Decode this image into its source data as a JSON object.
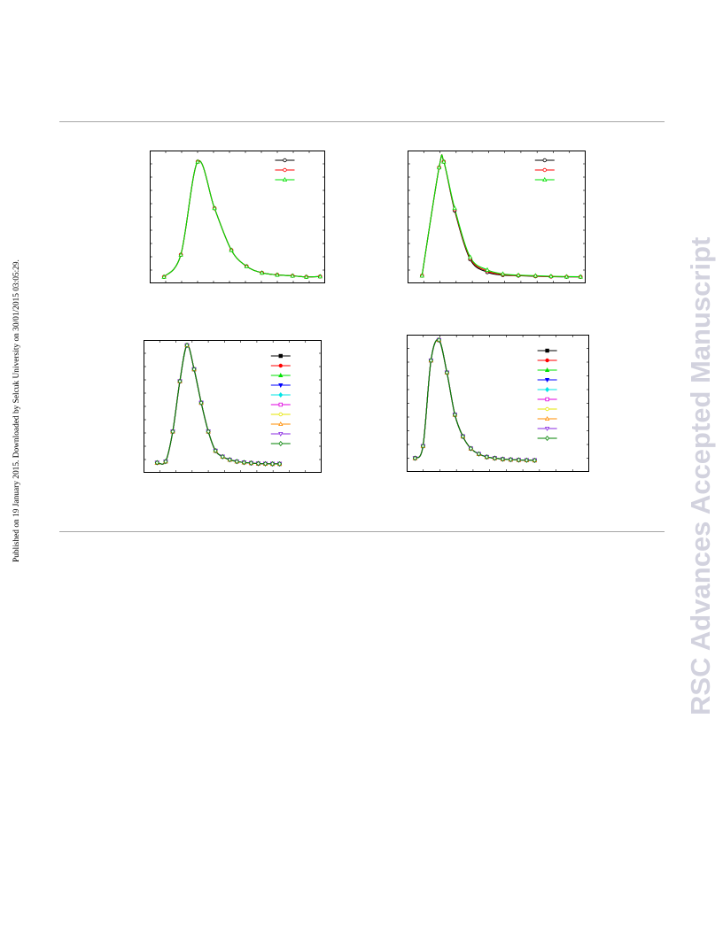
{
  "side_note": "Published on 19 January 2015. Downloaded by Selcuk University on 30/01/2015 03:05:29.",
  "watermark": "RSC Advances Accepted Manuscript",
  "chart_data": [
    {
      "type": "line",
      "title": "",
      "xlabel": "",
      "ylabel": "",
      "xlim": [
        0,
        11
      ],
      "ylim": [
        0,
        1.05
      ],
      "x": [
        0.7,
        1.8,
        2.9,
        4.0,
        5.1,
        6.1,
        7.1,
        8.1,
        9.1,
        10.0,
        10.9
      ],
      "series": [
        {
          "color": "#000000",
          "marker": "circle-open",
          "values": [
            0.01,
            0.2,
            1.0,
            0.6,
            0.24,
            0.1,
            0.045,
            0.027,
            0.019,
            0.01,
            0.013
          ]
        },
        {
          "color": "#ff0000",
          "marker": "circle-open",
          "values": [
            0.01,
            0.2,
            1.0,
            0.6,
            0.24,
            0.1,
            0.045,
            0.027,
            0.019,
            0.01,
            0.013
          ]
        },
        {
          "color": "#00e000",
          "marker": "triangle-up-open",
          "values": [
            0.01,
            0.2,
            1.0,
            0.6,
            0.24,
            0.1,
            0.045,
            0.027,
            0.019,
            0.01,
            0.013
          ]
        }
      ],
      "grid": false,
      "legend": "top-right"
    },
    {
      "type": "line",
      "title": "",
      "xlabel": "",
      "ylabel": "",
      "xlim": [
        0,
        11
      ],
      "ylim": [
        0,
        1.05
      ],
      "x": [
        0.7,
        1.8,
        2.1,
        2.8,
        3.8,
        4.9,
        5.9,
        6.9,
        8.0,
        9.0,
        10.0,
        10.9
      ],
      "series": [
        {
          "color": "#000000",
          "marker": "circle-open",
          "values": [
            0.02,
            0.95,
            1.0,
            0.58,
            0.16,
            0.05,
            0.025,
            0.02,
            0.015,
            0.012,
            0.01,
            0.01
          ]
        },
        {
          "color": "#ff0000",
          "marker": "circle-open",
          "values": [
            0.02,
            0.95,
            1.0,
            0.59,
            0.17,
            0.06,
            0.03,
            0.022,
            0.017,
            0.013,
            0.011,
            0.01
          ]
        },
        {
          "color": "#00e000",
          "marker": "triangle-up-open",
          "values": [
            0.02,
            0.95,
            1.0,
            0.6,
            0.18,
            0.07,
            0.035,
            0.025,
            0.02,
            0.015,
            0.012,
            0.011
          ]
        }
      ],
      "grid": false,
      "legend": "top-right"
    },
    {
      "type": "line",
      "title": "",
      "xlabel": "",
      "ylabel": "",
      "xlim": [
        0,
        12
      ],
      "ylim": [
        -0.02,
        1.0
      ],
      "x": [
        0.7,
        1.3,
        1.8,
        2.3,
        2.8,
        3.3,
        3.8,
        4.3,
        4.8,
        5.3,
        5.8,
        6.3,
        6.8,
        7.3,
        7.8,
        8.3,
        8.8,
        9.3
      ],
      "series": [
        {
          "name": "",
          "color": "#000000",
          "marker": "square-filled",
          "values": [
            0.02,
            0.03,
            0.28,
            0.7,
            1.0,
            0.8,
            0.52,
            0.28,
            0.12,
            0.07,
            0.045,
            0.03,
            0.022,
            0.017,
            0.013,
            0.011,
            0.01,
            0.01
          ]
        },
        {
          "name": "",
          "color": "#ff0000",
          "marker": "circle-filled",
          "values": [
            0.02,
            0.03,
            0.28,
            0.7,
            1.0,
            0.8,
            0.52,
            0.28,
            0.12,
            0.07,
            0.045,
            0.03,
            0.022,
            0.017,
            0.013,
            0.011,
            0.01,
            0.01
          ]
        },
        {
          "name": "",
          "color": "#00e000",
          "marker": "triangle-up-filled",
          "values": [
            0.02,
            0.03,
            0.28,
            0.7,
            1.0,
            0.8,
            0.52,
            0.28,
            0.12,
            0.07,
            0.045,
            0.03,
            0.022,
            0.017,
            0.013,
            0.011,
            0.01,
            0.01
          ]
        },
        {
          "name": "",
          "color": "#0000ff",
          "marker": "triangle-down-filled",
          "values": [
            0.02,
            0.03,
            0.28,
            0.7,
            1.0,
            0.8,
            0.52,
            0.28,
            0.12,
            0.07,
            0.045,
            0.03,
            0.022,
            0.017,
            0.013,
            0.011,
            0.01,
            0.01
          ]
        },
        {
          "name": "",
          "color": "#00e5e5",
          "marker": "diamond-filled",
          "values": [
            0.02,
            0.03,
            0.28,
            0.7,
            1.0,
            0.8,
            0.52,
            0.28,
            0.12,
            0.07,
            0.045,
            0.03,
            0.022,
            0.017,
            0.013,
            0.011,
            0.01,
            0.01
          ]
        },
        {
          "name": "",
          "color": "#e000e0",
          "marker": "square-open",
          "values": [
            0.02,
            0.03,
            0.28,
            0.7,
            1.0,
            0.8,
            0.52,
            0.28,
            0.12,
            0.07,
            0.045,
            0.03,
            0.022,
            0.017,
            0.013,
            0.011,
            0.01,
            0.01
          ]
        },
        {
          "name": "",
          "color": "#e6e600",
          "marker": "circle-open",
          "values": [
            0.02,
            0.03,
            0.28,
            0.7,
            1.0,
            0.8,
            0.52,
            0.28,
            0.12,
            0.07,
            0.045,
            0.03,
            0.022,
            0.017,
            0.013,
            0.011,
            0.01,
            0.01
          ]
        },
        {
          "name": "",
          "color": "#ff8c00",
          "marker": "triangle-up-open",
          "values": [
            0.02,
            0.03,
            0.28,
            0.7,
            1.0,
            0.8,
            0.52,
            0.28,
            0.12,
            0.07,
            0.045,
            0.03,
            0.022,
            0.017,
            0.013,
            0.011,
            0.01,
            0.01
          ]
        },
        {
          "name": "",
          "color": "#8a2be2",
          "marker": "triangle-down-open",
          "values": [
            0.02,
            0.03,
            0.28,
            0.7,
            1.0,
            0.8,
            0.52,
            0.28,
            0.12,
            0.07,
            0.045,
            0.03,
            0.022,
            0.017,
            0.013,
            0.011,
            0.01,
            0.01
          ]
        },
        {
          "name": "",
          "color": "#008000",
          "marker": "diamond-open",
          "values": [
            0.02,
            0.03,
            0.28,
            0.7,
            1.0,
            0.8,
            0.52,
            0.28,
            0.12,
            0.07,
            0.045,
            0.03,
            0.022,
            0.017,
            0.013,
            0.011,
            0.01,
            0.01
          ]
        }
      ],
      "grid": false,
      "legend": "top-right"
    },
    {
      "type": "line",
      "title": "",
      "xlabel": "",
      "ylabel": "",
      "xlim": [
        0,
        11
      ],
      "ylim": [
        -0.05,
        1.0
      ],
      "x": [
        0.3,
        0.8,
        1.3,
        1.8,
        2.3,
        2.8,
        3.3,
        3.8,
        4.3,
        4.8,
        5.3,
        5.8,
        6.3,
        6.8,
        7.3,
        7.8
      ],
      "series": [
        {
          "name": "",
          "color": "#000000",
          "marker": "square-filled",
          "values": [
            0.02,
            0.12,
            0.83,
            1.0,
            0.73,
            0.38,
            0.2,
            0.1,
            0.055,
            0.03,
            0.02,
            0.012,
            0.008,
            0.005,
            0.003,
            0.002
          ]
        },
        {
          "name": "",
          "color": "#ff0000",
          "marker": "circle-filled",
          "values": [
            0.02,
            0.12,
            0.83,
            1.0,
            0.73,
            0.38,
            0.2,
            0.1,
            0.055,
            0.03,
            0.02,
            0.012,
            0.008,
            0.005,
            0.003,
            0.002
          ]
        },
        {
          "name": "",
          "color": "#00e000",
          "marker": "triangle-up-filled",
          "values": [
            0.02,
            0.12,
            0.83,
            1.0,
            0.73,
            0.38,
            0.2,
            0.1,
            0.055,
            0.03,
            0.02,
            0.012,
            0.008,
            0.005,
            0.003,
            0.002
          ]
        },
        {
          "name": "",
          "color": "#0000ff",
          "marker": "triangle-down-filled",
          "values": [
            0.02,
            0.12,
            0.83,
            1.0,
            0.73,
            0.38,
            0.2,
            0.1,
            0.055,
            0.03,
            0.02,
            0.012,
            0.008,
            0.005,
            0.003,
            0.002
          ]
        },
        {
          "name": "",
          "color": "#00e5e5",
          "marker": "diamond-filled",
          "values": [
            0.02,
            0.12,
            0.83,
            1.0,
            0.73,
            0.38,
            0.2,
            0.1,
            0.055,
            0.03,
            0.02,
            0.012,
            0.008,
            0.005,
            0.003,
            0.002
          ]
        },
        {
          "name": "",
          "color": "#e000e0",
          "marker": "square-open",
          "values": [
            0.02,
            0.12,
            0.83,
            1.0,
            0.73,
            0.38,
            0.2,
            0.1,
            0.055,
            0.03,
            0.02,
            0.012,
            0.008,
            0.005,
            0.003,
            0.002
          ]
        },
        {
          "name": "",
          "color": "#e6e600",
          "marker": "circle-open",
          "values": [
            0.02,
            0.12,
            0.83,
            1.0,
            0.73,
            0.38,
            0.2,
            0.1,
            0.055,
            0.03,
            0.02,
            0.012,
            0.008,
            0.005,
            0.003,
            0.002
          ]
        },
        {
          "name": "",
          "color": "#ff8c00",
          "marker": "triangle-up-open",
          "values": [
            0.02,
            0.12,
            0.83,
            1.0,
            0.73,
            0.38,
            0.2,
            0.1,
            0.055,
            0.03,
            0.02,
            0.012,
            0.008,
            0.005,
            0.003,
            0.002
          ]
        },
        {
          "name": "",
          "color": "#8a2be2",
          "marker": "triangle-down-open",
          "values": [
            0.02,
            0.12,
            0.83,
            1.0,
            0.73,
            0.38,
            0.2,
            0.1,
            0.055,
            0.03,
            0.02,
            0.012,
            0.008,
            0.005,
            0.003,
            0.002
          ]
        },
        {
          "name": "",
          "color": "#008000",
          "marker": "diamond-open",
          "values": [
            0.02,
            0.12,
            0.83,
            1.0,
            0.73,
            0.38,
            0.2,
            0.1,
            0.055,
            0.03,
            0.02,
            0.012,
            0.008,
            0.005,
            0.003,
            0.002
          ]
        }
      ],
      "grid": false,
      "legend": "top-right"
    }
  ]
}
